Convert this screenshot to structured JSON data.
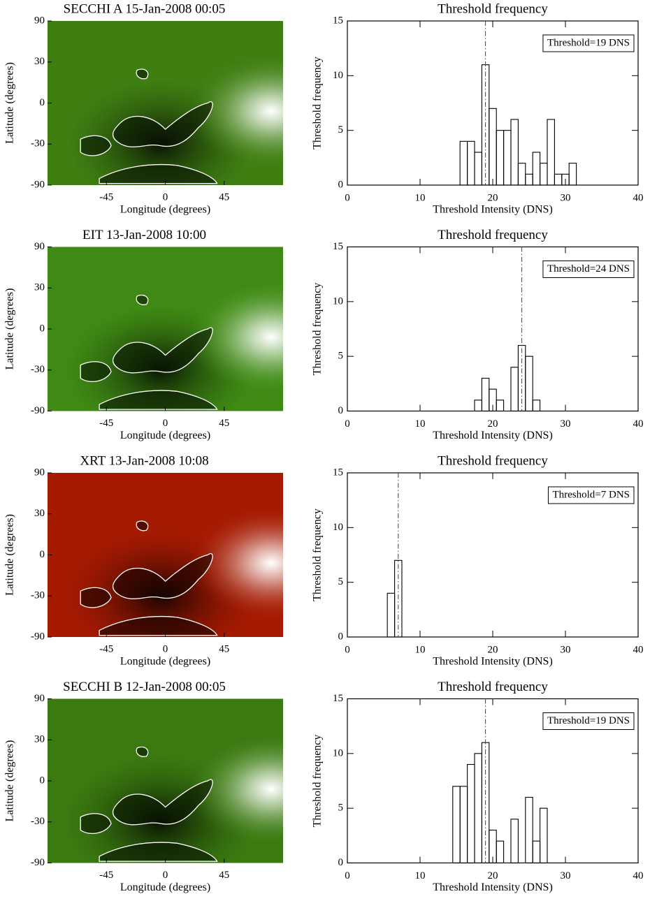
{
  "chart_data": [
    {
      "type": "image",
      "title": "SECCHI A 15-Jan-2008 00:05",
      "xlabel": "Longitude (degrees)",
      "ylabel": "Latitude (degrees)",
      "xlim": [
        -90,
        90
      ],
      "ylim": [
        -90,
        90
      ],
      "xticks": [
        -45,
        0,
        45
      ],
      "yticks": [
        90,
        30,
        0,
        -30,
        -90
      ],
      "yscale": "sine",
      "color": "#3f7f12"
    },
    {
      "type": "histogram",
      "title": "Threshold frequency",
      "xlabel": "Threshold Intensity (DNS)",
      "ylabel": "Threshold frequency",
      "bins": [
        15.5,
        16.5,
        17.5,
        18.5,
        19.5,
        20.5,
        21.5,
        22.5,
        23.5,
        24.5,
        25.5,
        26.5,
        27.5,
        28.5,
        29.5,
        30.5,
        31.5
      ],
      "values": [
        4,
        4,
        3,
        11,
        7,
        5,
        5,
        6,
        2,
        1,
        3,
        2,
        6,
        1,
        1,
        2
      ],
      "xlim": [
        0,
        40
      ],
      "ylim": [
        0,
        15
      ],
      "xticks": [
        0,
        10,
        20,
        30,
        40
      ],
      "yticks": [
        0,
        5,
        10,
        15
      ],
      "threshold": 19,
      "annotation": "Threshold=19 DNS",
      "color": "#000000"
    },
    {
      "type": "image",
      "title": "EIT 13-Jan-2008 10:00",
      "xlabel": "Longitude (degrees)",
      "ylabel": "Latitude (degrees)",
      "xlim": [
        -90,
        90
      ],
      "ylim": [
        -90,
        90
      ],
      "xticks": [
        -45,
        0,
        45
      ],
      "yticks": [
        90,
        30,
        0,
        -30,
        -90
      ],
      "yscale": "sine",
      "color": "#3f8a14"
    },
    {
      "type": "histogram",
      "title": "Threshold frequency",
      "xlabel": "Threshold Intensity (DNS)",
      "ylabel": "Threshold frequency",
      "bins": [
        17.5,
        18.5,
        19.5,
        20.5,
        21.5,
        22.5,
        23.5,
        24.5,
        25.5,
        26.5
      ],
      "values": [
        1,
        3,
        2,
        1,
        0,
        4,
        6,
        5,
        1
      ],
      "xlim": [
        0,
        40
      ],
      "ylim": [
        0,
        15
      ],
      "xticks": [
        0,
        10,
        20,
        30,
        40
      ],
      "yticks": [
        0,
        5,
        10,
        15
      ],
      "threshold": 24,
      "annotation": "Threshold=24 DNS",
      "color": "#000000"
    },
    {
      "type": "image",
      "title": "XRT 13-Jan-2008 10:08",
      "xlabel": "Longitude (degrees)",
      "ylabel": "Latitude (degrees)",
      "xlim": [
        -90,
        90
      ],
      "ylim": [
        -90,
        90
      ],
      "xticks": [
        -45,
        0,
        45
      ],
      "yticks": [
        90,
        30,
        0,
        -30,
        -90
      ],
      "yscale": "sine",
      "color": "#a51a02"
    },
    {
      "type": "histogram",
      "title": "Threshold frequency",
      "xlabel": "Threshold Intensity (DNS)",
      "ylabel": "Threshold frequency",
      "bins": [
        5.5,
        6.5,
        7.5
      ],
      "values": [
        4,
        7
      ],
      "xlim": [
        0,
        40
      ],
      "ylim": [
        0,
        15
      ],
      "xticks": [
        0,
        10,
        20,
        30,
        40
      ],
      "yticks": [
        0,
        5,
        10,
        15
      ],
      "threshold": 7,
      "annotation": "Threshold=7 DNS",
      "color": "#000000"
    },
    {
      "type": "image",
      "title": "SECCHI B 12-Jan-2008 00:05",
      "xlabel": "Longitude (degrees)",
      "ylabel": "Latitude (degrees)",
      "xlim": [
        -90,
        90
      ],
      "ylim": [
        -90,
        90
      ],
      "xticks": [
        -45,
        0,
        45
      ],
      "yticks": [
        90,
        30,
        0,
        -30,
        -90
      ],
      "yscale": "sine",
      "color": "#3a7a10"
    },
    {
      "type": "histogram",
      "title": "Threshold frequency",
      "xlabel": "Threshold Intensity (DNS)",
      "ylabel": "Threshold frequency",
      "bins": [
        14.5,
        15.5,
        16.5,
        17.5,
        18.5,
        19.5,
        20.5,
        21.5,
        22.5,
        23.5,
        24.5,
        25.5,
        26.5,
        27.5
      ],
      "values": [
        7,
        7,
        9,
        10,
        11,
        3,
        2,
        0,
        4,
        0,
        6,
        2,
        5
      ],
      "xlim": [
        0,
        40
      ],
      "ylim": [
        0,
        15
      ],
      "xticks": [
        0,
        10,
        20,
        30,
        40
      ],
      "yticks": [
        0,
        5,
        10,
        15
      ],
      "threshold": 19,
      "annotation": "Threshold=19 DNS",
      "color": "#000000"
    }
  ]
}
